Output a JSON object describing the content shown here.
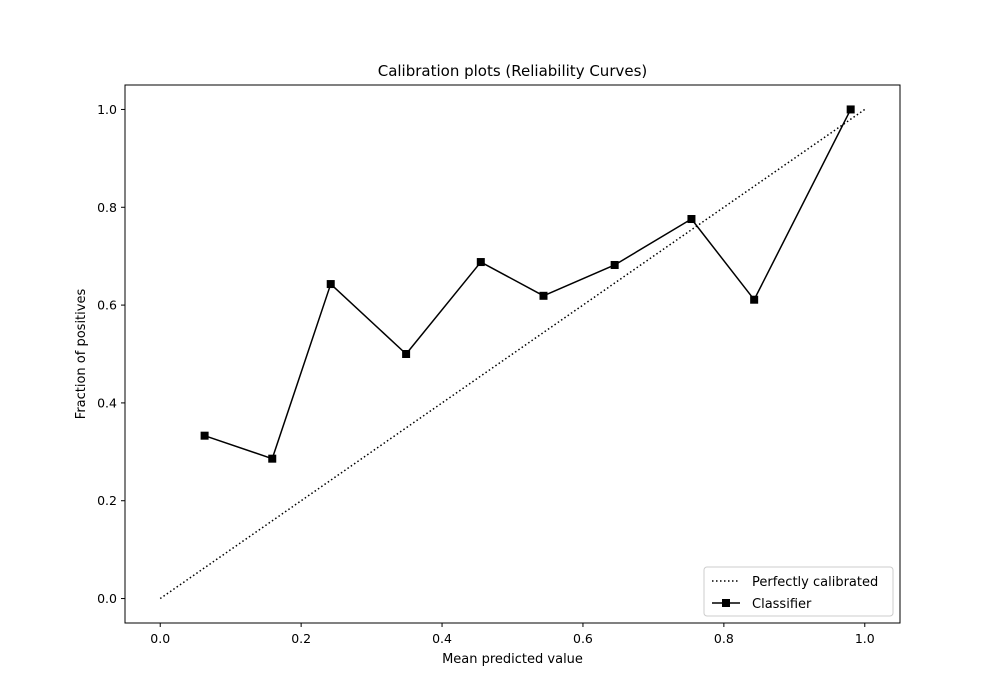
{
  "chart_data": {
    "type": "line",
    "title": "Calibration plots (Reliability Curves)",
    "xlabel": "Mean predicted value",
    "ylabel": "Fraction of positives",
    "xlim": [
      -0.05,
      1.05
    ],
    "ylim": [
      -0.05,
      1.05
    ],
    "x_ticks": [
      0.0,
      0.2,
      0.4,
      0.6,
      0.8,
      1.0
    ],
    "y_ticks": [
      0.0,
      0.2,
      0.4,
      0.6,
      0.8,
      1.0
    ],
    "x_tick_labels": [
      "0.0",
      "0.2",
      "0.4",
      "0.6",
      "0.8",
      "1.0"
    ],
    "y_tick_labels": [
      "0.0",
      "0.2",
      "0.4",
      "0.6",
      "0.8",
      "1.0"
    ],
    "grid": false,
    "legend_position": "lower-right",
    "series": [
      {
        "name": "Perfectly calibrated",
        "style": "dotted",
        "color": "#000000",
        "marker": "none",
        "x": [
          0.0,
          1.0
        ],
        "y": [
          0.0,
          1.0
        ]
      },
      {
        "name": "Classifier",
        "style": "solid",
        "color": "#000000",
        "marker": "square",
        "x": [
          0.063,
          0.159,
          0.242,
          0.349,
          0.455,
          0.544,
          0.645,
          0.754,
          0.843,
          0.98
        ],
        "y": [
          0.333,
          0.286,
          0.643,
          0.5,
          0.688,
          0.619,
          0.682,
          0.776,
          0.611,
          1.0
        ]
      }
    ]
  }
}
